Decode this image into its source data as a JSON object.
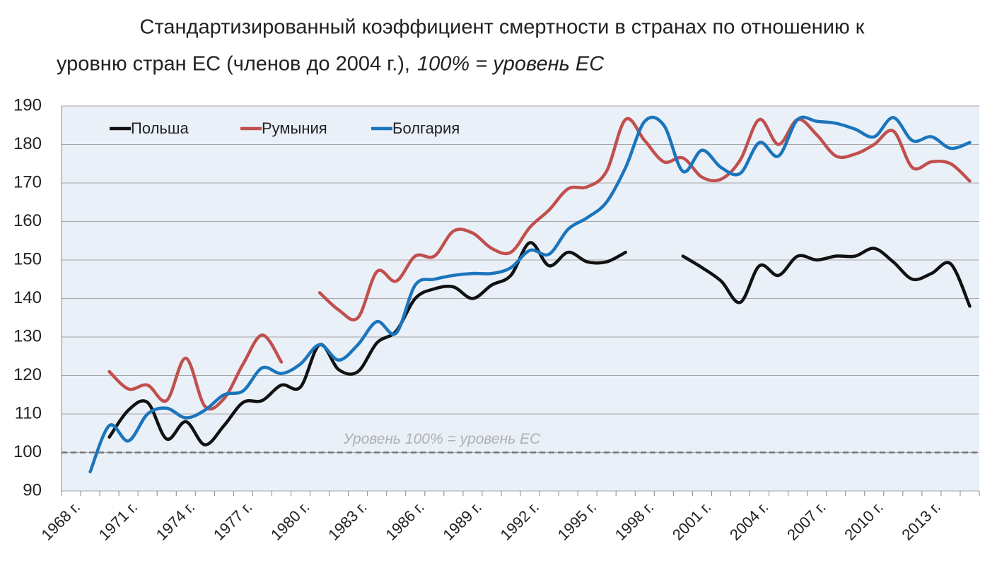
{
  "chart_data": {
    "type": "line",
    "title_lines": [
      "Стандартизированный коэффициент смертности в странах по отношению к",
      "уровню стран ЕС (членов до 2004 г.),"
    ],
    "title_italic": "100% = уровень ЕС",
    "categories": [
      "1968 г.",
      null,
      null,
      "1971 г.",
      null,
      null,
      "1974 г.",
      null,
      null,
      "1977 г.",
      null,
      null,
      "1980 г.",
      null,
      null,
      "1983 г.",
      null,
      null,
      "1986 г.",
      null,
      null,
      "1989 г.",
      null,
      null,
      "1992 г.",
      null,
      null,
      "1995 г.",
      null,
      null,
      "1998 г.",
      null,
      null,
      "2001 г.",
      null,
      null,
      "2004 г.",
      null,
      null,
      "2007 г.",
      null,
      null,
      "2010 г.",
      null,
      null,
      "2013 г.",
      null,
      null
    ],
    "series": [
      {
        "name": "Польша",
        "color": "#111111",
        "values": [
          null,
          null,
          104,
          111,
          113,
          103.5,
          108,
          102,
          107,
          113,
          113.5,
          117.5,
          117,
          128,
          121.5,
          121,
          128.5,
          131.5,
          140,
          142.5,
          143,
          140,
          143.5,
          146,
          154.5,
          148.5,
          152,
          149.5,
          149.5,
          152,
          null,
          null,
          151,
          148,
          144.5,
          139,
          148.5,
          146,
          151,
          150,
          151,
          151,
          153,
          149.5,
          145,
          146.5,
          149,
          138
        ]
      },
      {
        "name": "Румыния",
        "color": "#c0504d",
        "values": [
          null,
          null,
          121,
          116.5,
          117.5,
          113.5,
          124.5,
          112,
          114,
          123,
          130.5,
          123.5,
          null,
          141.5,
          137,
          135,
          147,
          144.5,
          151,
          151,
          157.5,
          157,
          153,
          152,
          158.5,
          163,
          168.5,
          169,
          173,
          186.5,
          181,
          175.5,
          176.5,
          171.5,
          171,
          176,
          186.5,
          180,
          186.5,
          182.5,
          177,
          177.5,
          180,
          183.5,
          174,
          175.5,
          175,
          170.5
        ]
      },
      {
        "name": "Болгария",
        "color": "#1a75bc",
        "values": [
          null,
          95,
          107,
          103,
          110,
          111.5,
          109,
          111,
          115,
          116,
          122,
          120.5,
          123,
          128,
          124,
          128,
          134,
          131,
          143.5,
          145,
          146,
          146.5,
          146.5,
          148,
          152.5,
          151.5,
          158,
          161,
          165,
          174,
          186,
          185,
          173,
          178.5,
          174,
          172.5,
          180.5,
          177,
          186.5,
          186,
          185.5,
          184,
          182,
          187,
          181,
          182,
          179,
          180.5
        ]
      }
    ],
    "reference_line": {
      "value": 100,
      "label": "Уровень 100% = уровень ЕС"
    },
    "ylim": [
      90,
      190
    ],
    "yticks": [
      90,
      100,
      110,
      120,
      130,
      140,
      150,
      160,
      170,
      180,
      190
    ],
    "grid": true,
    "legend": "top-left"
  }
}
